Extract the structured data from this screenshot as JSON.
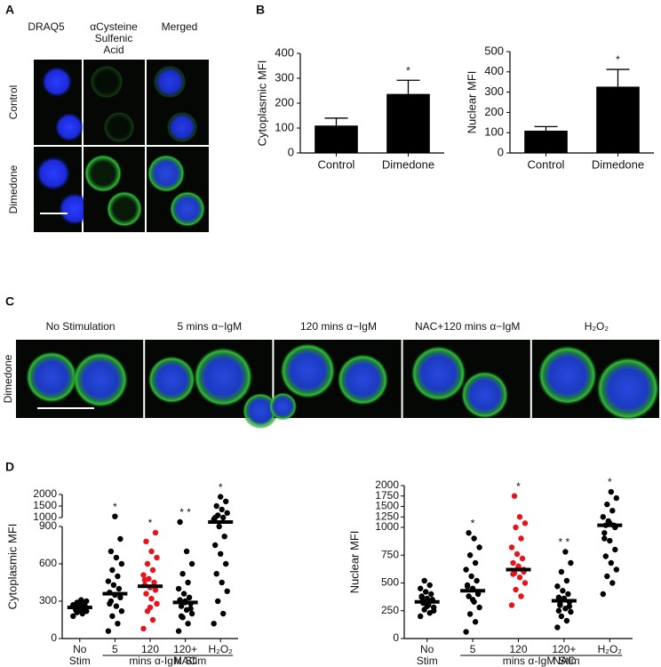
{
  "panels": {
    "a": "A",
    "b": "B",
    "c": "C",
    "d": "D"
  },
  "panel_a": {
    "columns": [
      "DRAQ5",
      "αCysteine Sulfenic Acid",
      "Merged"
    ],
    "rows": [
      "Control",
      "Dimedone"
    ]
  },
  "panel_c": {
    "columns": [
      "No Stimulation",
      "5 mins α−IgM",
      "120 mins α−IgM",
      "NAC+120 mins α−IgM",
      "H₂O₂"
    ],
    "row": "Dimedone"
  },
  "chart_data": [
    {
      "type": "bar",
      "ylabel": "Cytoplasmic MFI",
      "categories": [
        "Control",
        "Dimedone"
      ],
      "values": [
        110,
        237
      ],
      "errors": [
        30,
        55
      ],
      "annotations": [
        null,
        "*"
      ],
      "color": "#000000",
      "ylim": [
        0,
        400
      ],
      "yticks": [
        0,
        100,
        200,
        300,
        400
      ]
    },
    {
      "type": "bar",
      "ylabel": "Nuclear MFI",
      "categories": [
        "Control",
        "Dimedone"
      ],
      "values": [
        110,
        327
      ],
      "errors": [
        20,
        85
      ],
      "annotations": [
        null,
        "*"
      ],
      "color": "#000000",
      "ylim": [
        0,
        500
      ],
      "yticks": [
        0,
        100,
        200,
        300,
        400,
        500
      ]
    },
    {
      "type": "dot",
      "ylabel": "Cytoplasmic MFI",
      "xlabel": "mins α-IgM Stim",
      "categories": [
        "No Stim",
        "5",
        "120",
        "120+ NAC",
        "H₂O₂"
      ],
      "colors": [
        "#000000",
        "#000000",
        "#e8141c",
        "#000000",
        "#000000"
      ],
      "annotations": [
        null,
        "*",
        "*",
        "* *",
        "*"
      ],
      "points": [
        [
          180,
          200,
          210,
          220,
          230,
          240,
          245,
          250,
          255,
          260,
          265,
          270,
          280,
          290,
          300,
          310,
          230,
          260,
          240,
          270
        ],
        [
          60,
          120,
          180,
          220,
          260,
          300,
          330,
          350,
          370,
          400,
          430,
          460,
          500,
          550,
          600,
          650,
          700,
          800,
          1050,
          280
        ],
        [
          80,
          150,
          220,
          280,
          320,
          360,
          390,
          410,
          430,
          450,
          480,
          510,
          550,
          600,
          650,
          700,
          780,
          850,
          250,
          470
        ],
        [
          60,
          120,
          170,
          200,
          230,
          260,
          280,
          300,
          310,
          330,
          360,
          400,
          450,
          520,
          600,
          700,
          180,
          240,
          290,
          950
        ],
        [
          120,
          200,
          300,
          380,
          450,
          520,
          600,
          680,
          750,
          820,
          900,
          980,
          1000,
          1100,
          1200,
          1350,
          1500,
          1700,
          1900,
          1000
        ]
      ],
      "medians": [
        250,
        360,
        420,
        290,
        950
      ],
      "ysegments": [
        [
          0,
          900
        ],
        [
          1000,
          2000
        ]
      ],
      "yticks": [
        0,
        300,
        600,
        900,
        1000,
        1500,
        2000
      ]
    },
    {
      "type": "dot",
      "ylabel": "Nuclear MFI",
      "xlabel": "mins α-IgM Stim",
      "categories": [
        "No Stim",
        "5",
        "120",
        "120+ NAC",
        "H₂O₂"
      ],
      "colors": [
        "#000000",
        "#000000",
        "#e8141c",
        "#000000",
        "#000000"
      ],
      "annotations": [
        null,
        "*",
        "*",
        "* *",
        "*"
      ],
      "points": [
        [
          200,
          230,
          260,
          280,
          300,
          320,
          340,
          360,
          380,
          400,
          420,
          450,
          480,
          520,
          250,
          310,
          330,
          350,
          290,
          370
        ],
        [
          60,
          150,
          220,
          280,
          330,
          380,
          420,
          450,
          480,
          520,
          560,
          620,
          680,
          750,
          820,
          900,
          950,
          400,
          350,
          470
        ],
        [
          300,
          380,
          440,
          500,
          550,
          590,
          620,
          650,
          680,
          720,
          760,
          820,
          900,
          1000,
          1100,
          1250,
          1750,
          600,
          640,
          580
        ],
        [
          100,
          160,
          200,
          240,
          270,
          300,
          330,
          350,
          370,
          400,
          430,
          470,
          520,
          600,
          680,
          780,
          310,
          290,
          360,
          250
        ],
        [
          400,
          500,
          560,
          620,
          680,
          740,
          800,
          880,
          950,
          1050,
          1150,
          1250,
          1400,
          1550,
          1700,
          1850,
          1050,
          1000,
          1100,
          900
        ]
      ],
      "medians": [
        330,
        430,
        620,
        340,
        1050
      ],
      "ysegments": [
        [
          0,
          1000
        ],
        [
          1000,
          2000
        ]
      ],
      "yticks": [
        0,
        250,
        500,
        750,
        1000,
        1250,
        1500,
        1750,
        2000
      ]
    }
  ]
}
